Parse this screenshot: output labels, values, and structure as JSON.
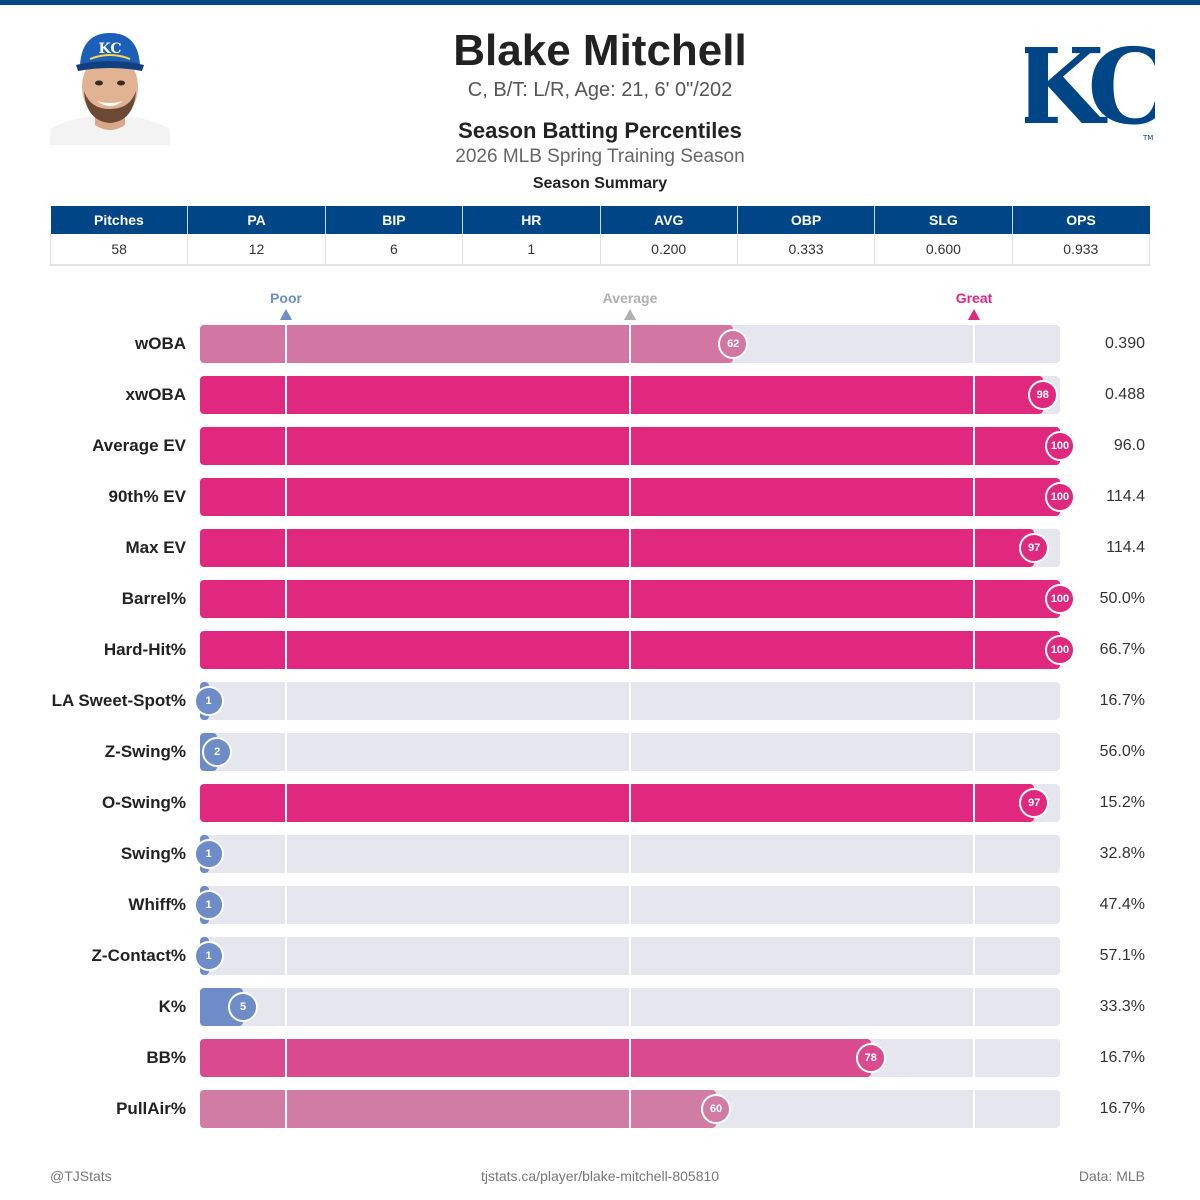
{
  "header": {
    "player_name": "Blake Mitchell",
    "bio": "C, B/T: L/R, Age: 21, 6' 0\"/202",
    "subtitle": "Season Batting Percentiles",
    "season": "2026 MLB Spring Training Season"
  },
  "summary": {
    "title": "Season Summary",
    "columns": [
      "Pitches",
      "PA",
      "BIP",
      "HR",
      "AVG",
      "OBP",
      "SLG",
      "OPS"
    ],
    "values": [
      "58",
      "12",
      "6",
      "1",
      "0.200",
      "0.333",
      "0.600",
      "0.933"
    ]
  },
  "colors": {
    "brand": "#004687",
    "great": "#e0287f",
    "poor": "#6e8cc8",
    "average": "#b0b0b0",
    "track": "#e6e7ee"
  },
  "chart_data": {
    "type": "bar",
    "orientation": "horizontal",
    "xlim": [
      0,
      100
    ],
    "reference_markers": [
      {
        "label": "Poor",
        "value": 10
      },
      {
        "label": "Average",
        "value": 50
      },
      {
        "label": "Great",
        "value": 90
      }
    ],
    "categories": [
      "wOBA",
      "xwOBA",
      "Average EV",
      "90th% EV",
      "Max EV",
      "Barrel%",
      "Hard-Hit%",
      "LA Sweet-Spot%",
      "Z-Swing%",
      "O-Swing%",
      "Swing%",
      "Whiff%",
      "Z-Contact%",
      "K%",
      "BB%",
      "PullAir%"
    ],
    "percentiles": [
      62,
      98,
      100,
      100,
      97,
      100,
      100,
      1,
      2,
      97,
      1,
      1,
      1,
      5,
      78,
      60
    ],
    "stat_values": [
      "0.390",
      "0.488",
      "96.0",
      "114.4",
      "114.4",
      "50.0%",
      "66.7%",
      "16.7%",
      "56.0%",
      "15.2%",
      "32.8%",
      "47.4%",
      "57.1%",
      "33.3%",
      "16.7%",
      "16.7%"
    ]
  },
  "footer": {
    "left": "@TJStats",
    "center": "tjstats.ca/player/blake-mitchell-805810",
    "right": "Data: MLB"
  }
}
